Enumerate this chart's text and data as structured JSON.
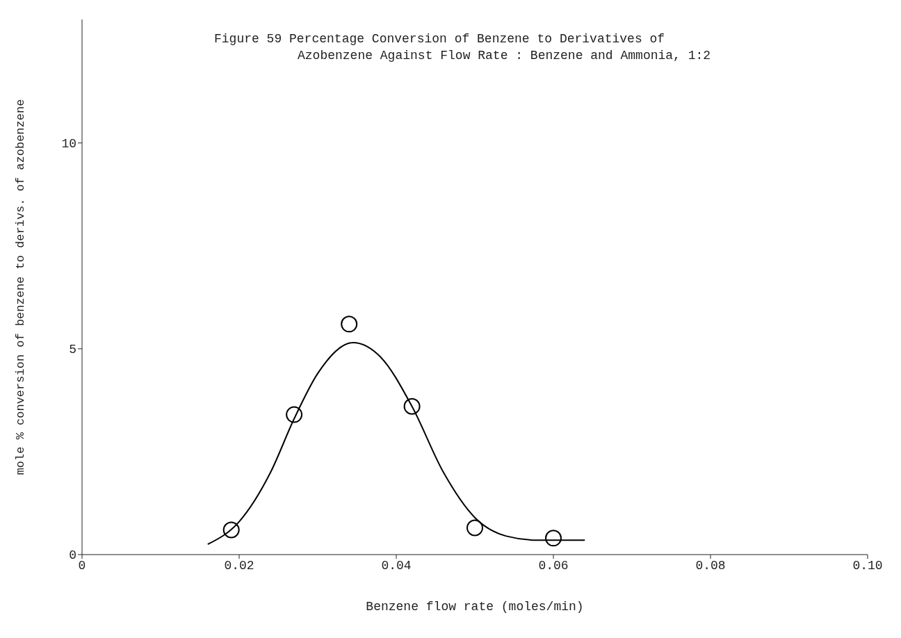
{
  "chart_data": {
    "type": "scatter",
    "title": "Figure 59 Percentage Conversion of Benzene to Derivatives of\nAzobenzene Against Flow Rate : Benzene and Ammonia, 1:2",
    "xlabel": "Benzene flow rate (moles/min)",
    "ylabel": "mole % conversion of benzene to derivs. of azobenzene",
    "xlim": [
      0,
      0.1
    ],
    "xticks": [
      0,
      0.02,
      0.04,
      0.06,
      0.08,
      {
        "value": 0.1,
        "label": "0.10"
      }
    ],
    "ylim": [
      0,
      13
    ],
    "yticks": [
      0,
      5,
      10
    ],
    "grid": false,
    "legend": false,
    "series": [
      {
        "color": "#000000",
        "marker": "circle",
        "x": [
          0.019,
          0.027,
          0.034,
          0.042,
          0.05,
          0.06
        ],
        "values": [
          0.6,
          3.4,
          5.6,
          3.6,
          0.65,
          0.4
        ]
      },
      {
        "type": "line",
        "color": "#000000",
        "marker": "none",
        "x": [
          0.016,
          0.02,
          0.024,
          0.027,
          0.03,
          0.0345,
          0.038,
          0.042,
          0.046,
          0.05,
          0.054,
          0.058,
          0.064
        ],
        "values": [
          0.25,
          0.8,
          2.0,
          3.3,
          4.4,
          5.15,
          4.8,
          3.6,
          2.0,
          0.9,
          0.45,
          0.35,
          0.35
        ]
      }
    ]
  }
}
